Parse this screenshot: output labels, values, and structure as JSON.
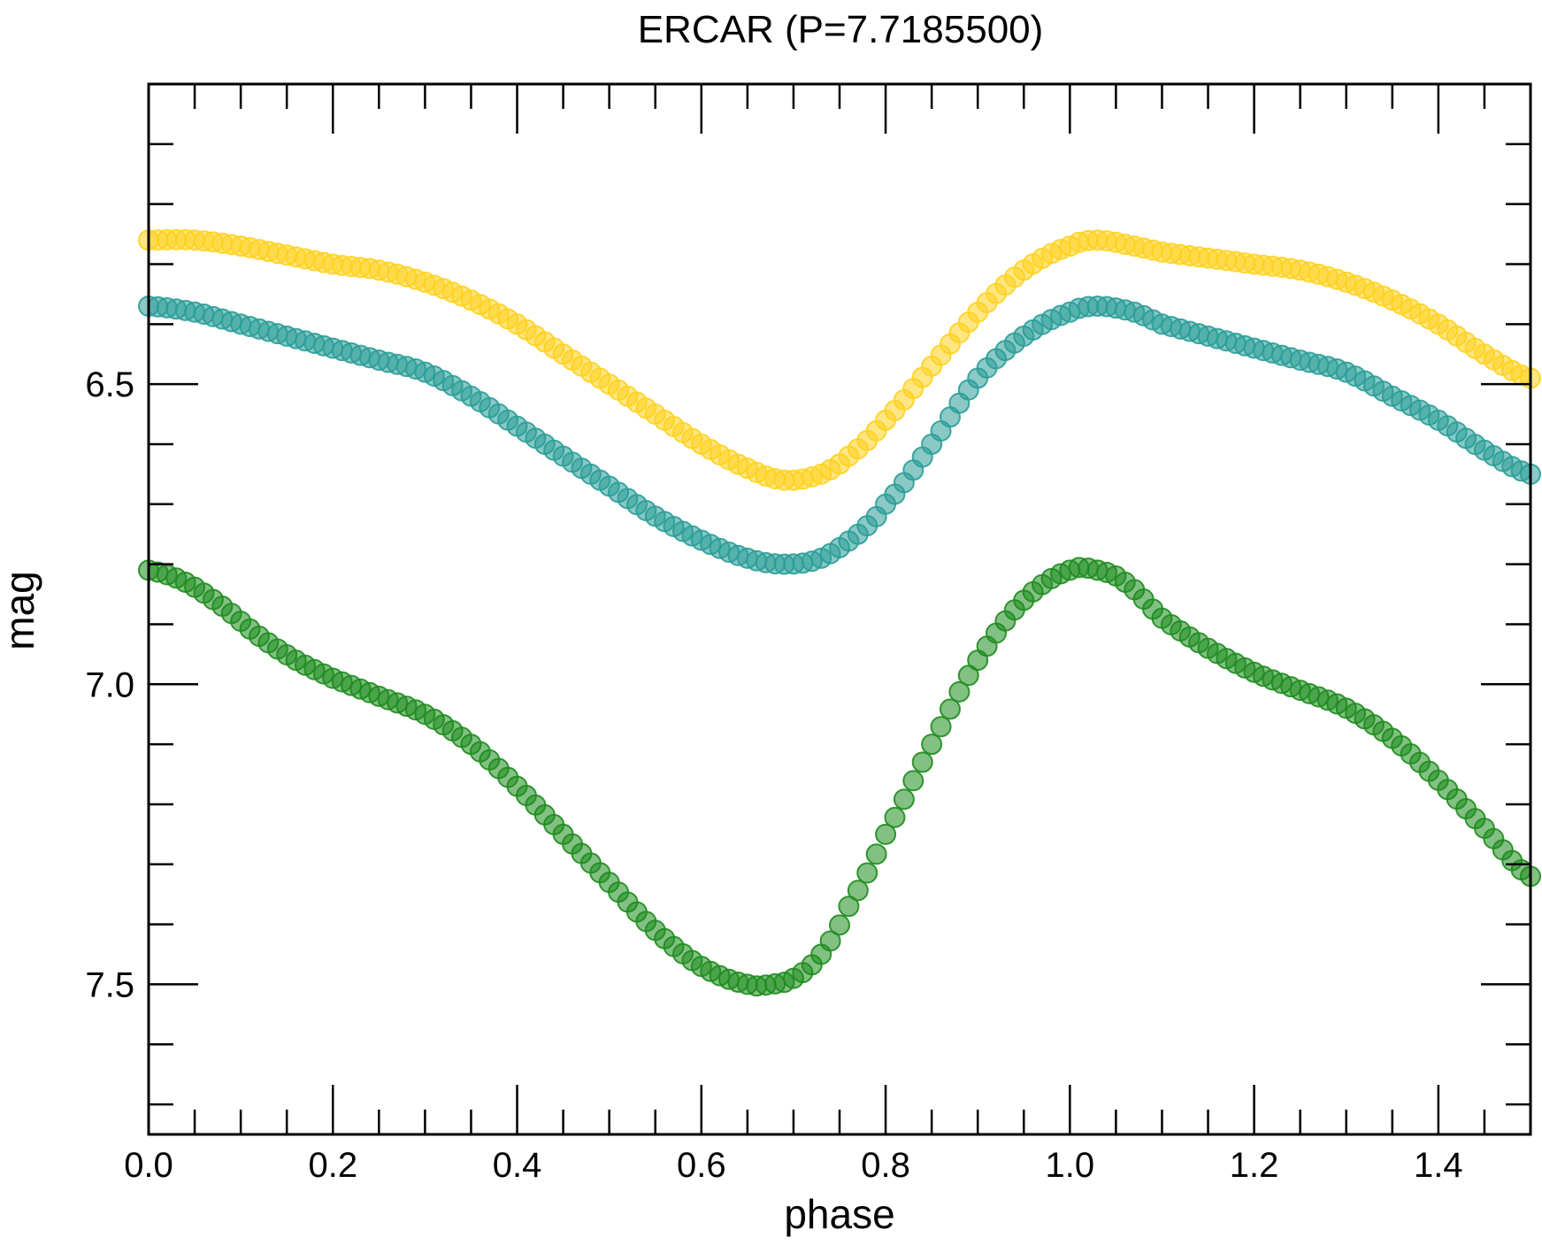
{
  "chart_data": {
    "type": "scatter",
    "title": "ERCAR (P=7.7185500)",
    "xlabel": "phase",
    "ylabel": "mag",
    "xlim": [
      0.0,
      1.5
    ],
    "ylim": [
      7.75,
      6.0
    ],
    "y_inverted": true,
    "x_ticks": {
      "major": [
        "0.0",
        "0.2",
        "0.4",
        "0.6",
        "0.8",
        "1.0",
        "1.2",
        "1.4"
      ],
      "minor_step": 0.05
    },
    "y_ticks": {
      "major": [
        "6.5",
        "7.0",
        "7.5"
      ],
      "minor_step": 0.1
    },
    "grid": false,
    "legend": "none",
    "series": [
      {
        "color": "#FFD21F",
        "phase": [
          0.0,
          0.05,
          0.1,
          0.15,
          0.2,
          0.25,
          0.3,
          0.35,
          0.4,
          0.45,
          0.5,
          0.55,
          0.6,
          0.65,
          0.69,
          0.73,
          0.76,
          0.8,
          0.85,
          0.9,
          0.95,
          1.0,
          1.03,
          1.07,
          1.1,
          1.15,
          1.2,
          1.25,
          1.3,
          1.35,
          1.4,
          1.45,
          1.5
        ],
        "mag": [
          6.26,
          6.26,
          6.27,
          6.285,
          6.3,
          6.31,
          6.33,
          6.36,
          6.4,
          6.45,
          6.5,
          6.55,
          6.6,
          6.64,
          6.66,
          6.65,
          6.62,
          6.56,
          6.47,
          6.38,
          6.31,
          6.27,
          6.26,
          6.27,
          6.28,
          6.29,
          6.3,
          6.31,
          6.33,
          6.36,
          6.4,
          6.45,
          6.49
        ]
      },
      {
        "color": "#2A9D98",
        "phase": [
          0.0,
          0.05,
          0.1,
          0.15,
          0.2,
          0.25,
          0.3,
          0.35,
          0.4,
          0.45,
          0.5,
          0.55,
          0.6,
          0.65,
          0.69,
          0.73,
          0.77,
          0.8,
          0.85,
          0.9,
          0.95,
          1.0,
          1.03,
          1.07,
          1.1,
          1.15,
          1.2,
          1.25,
          1.3,
          1.35,
          1.4,
          1.45,
          1.5
        ],
        "mag": [
          6.37,
          6.38,
          6.4,
          6.42,
          6.44,
          6.46,
          6.48,
          6.52,
          6.57,
          6.62,
          6.67,
          6.72,
          6.76,
          6.79,
          6.8,
          6.79,
          6.75,
          6.7,
          6.6,
          6.49,
          6.42,
          6.38,
          6.37,
          6.38,
          6.4,
          6.42,
          6.44,
          6.46,
          6.48,
          6.52,
          6.56,
          6.61,
          6.65
        ]
      },
      {
        "color": "#1E8C1E",
        "phase": [
          0.0,
          0.04,
          0.08,
          0.12,
          0.16,
          0.2,
          0.25,
          0.3,
          0.35,
          0.4,
          0.45,
          0.5,
          0.55,
          0.6,
          0.65,
          0.675,
          0.7,
          0.73,
          0.76,
          0.8,
          0.85,
          0.9,
          0.95,
          1.0,
          1.03,
          1.06,
          1.1,
          1.15,
          1.2,
          1.25,
          1.3,
          1.35,
          1.4,
          1.45,
          1.5
        ],
        "mag": [
          6.81,
          6.83,
          6.87,
          6.92,
          6.96,
          6.99,
          7.02,
          7.05,
          7.1,
          7.17,
          7.25,
          7.33,
          7.41,
          7.47,
          7.5,
          7.5,
          7.49,
          7.45,
          7.37,
          7.25,
          7.1,
          6.96,
          6.86,
          6.81,
          6.81,
          6.83,
          6.89,
          6.94,
          6.98,
          7.01,
          7.04,
          7.09,
          7.16,
          7.24,
          7.32
        ]
      }
    ]
  }
}
